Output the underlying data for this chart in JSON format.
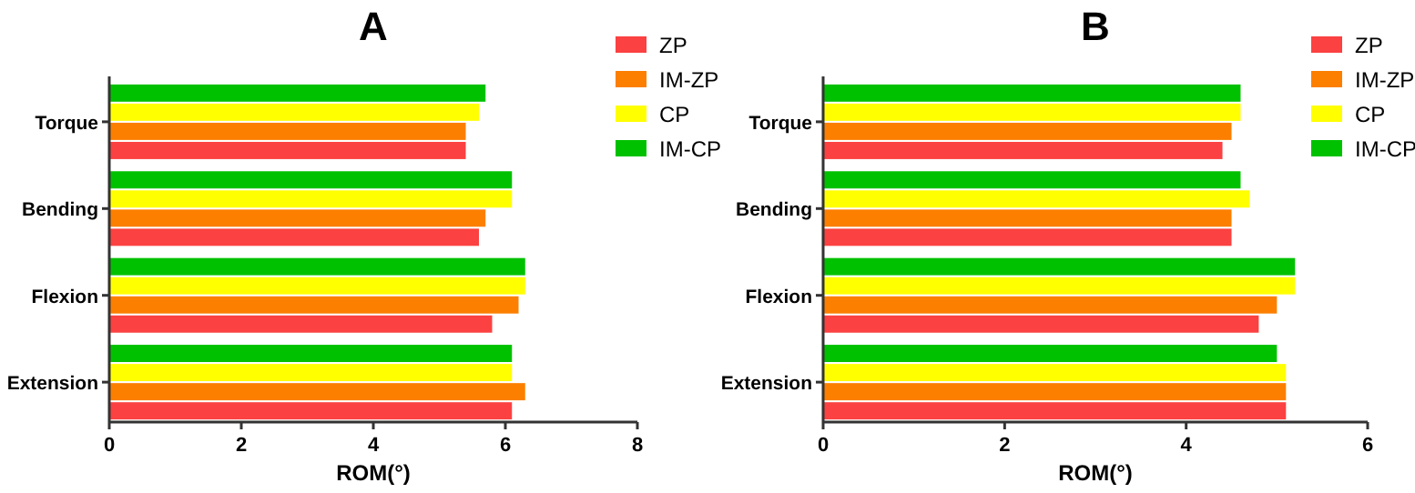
{
  "chart_data": [
    {
      "type": "bar",
      "title": "A",
      "orientation": "horizontal",
      "xlabel": "ROM(°)",
      "categories": [
        "Torque",
        "Bending",
        "Flexion",
        "Extension"
      ],
      "xlim": [
        0,
        8
      ],
      "xticks": [
        0,
        2,
        4,
        6,
        8
      ],
      "legend": "right",
      "grid": false,
      "series": [
        {
          "name": "ZP",
          "color": "#fb4141",
          "values": [
            5.4,
            5.6,
            5.8,
            6.1
          ]
        },
        {
          "name": "IM-ZP",
          "color": "#fc7f00",
          "values": [
            5.4,
            5.7,
            6.2,
            6.3
          ]
        },
        {
          "name": "CP",
          "color": "#ffff00",
          "values": [
            5.6,
            6.1,
            6.3,
            6.1
          ]
        },
        {
          "name": "IM-CP",
          "color": "#00c100",
          "values": [
            5.7,
            6.1,
            6.3,
            6.1
          ]
        }
      ]
    },
    {
      "type": "bar",
      "title": "B",
      "orientation": "horizontal",
      "xlabel": "ROM(°)",
      "categories": [
        "Torque",
        "Bending",
        "Flexion",
        "Extension"
      ],
      "xlim": [
        0,
        6
      ],
      "xticks": [
        0,
        2,
        4,
        6
      ],
      "legend": "right",
      "grid": false,
      "series": [
        {
          "name": "ZP",
          "color": "#fb4141",
          "values": [
            4.4,
            4.5,
            4.8,
            5.1
          ]
        },
        {
          "name": "IM-ZP",
          "color": "#fc7f00",
          "values": [
            4.5,
            4.5,
            5.0,
            5.1
          ]
        },
        {
          "name": "CP",
          "color": "#ffff00",
          "values": [
            4.6,
            4.7,
            5.2,
            5.1
          ]
        },
        {
          "name": "IM-CP",
          "color": "#00c100",
          "values": [
            4.6,
            4.6,
            5.2,
            5.0
          ]
        }
      ]
    }
  ]
}
